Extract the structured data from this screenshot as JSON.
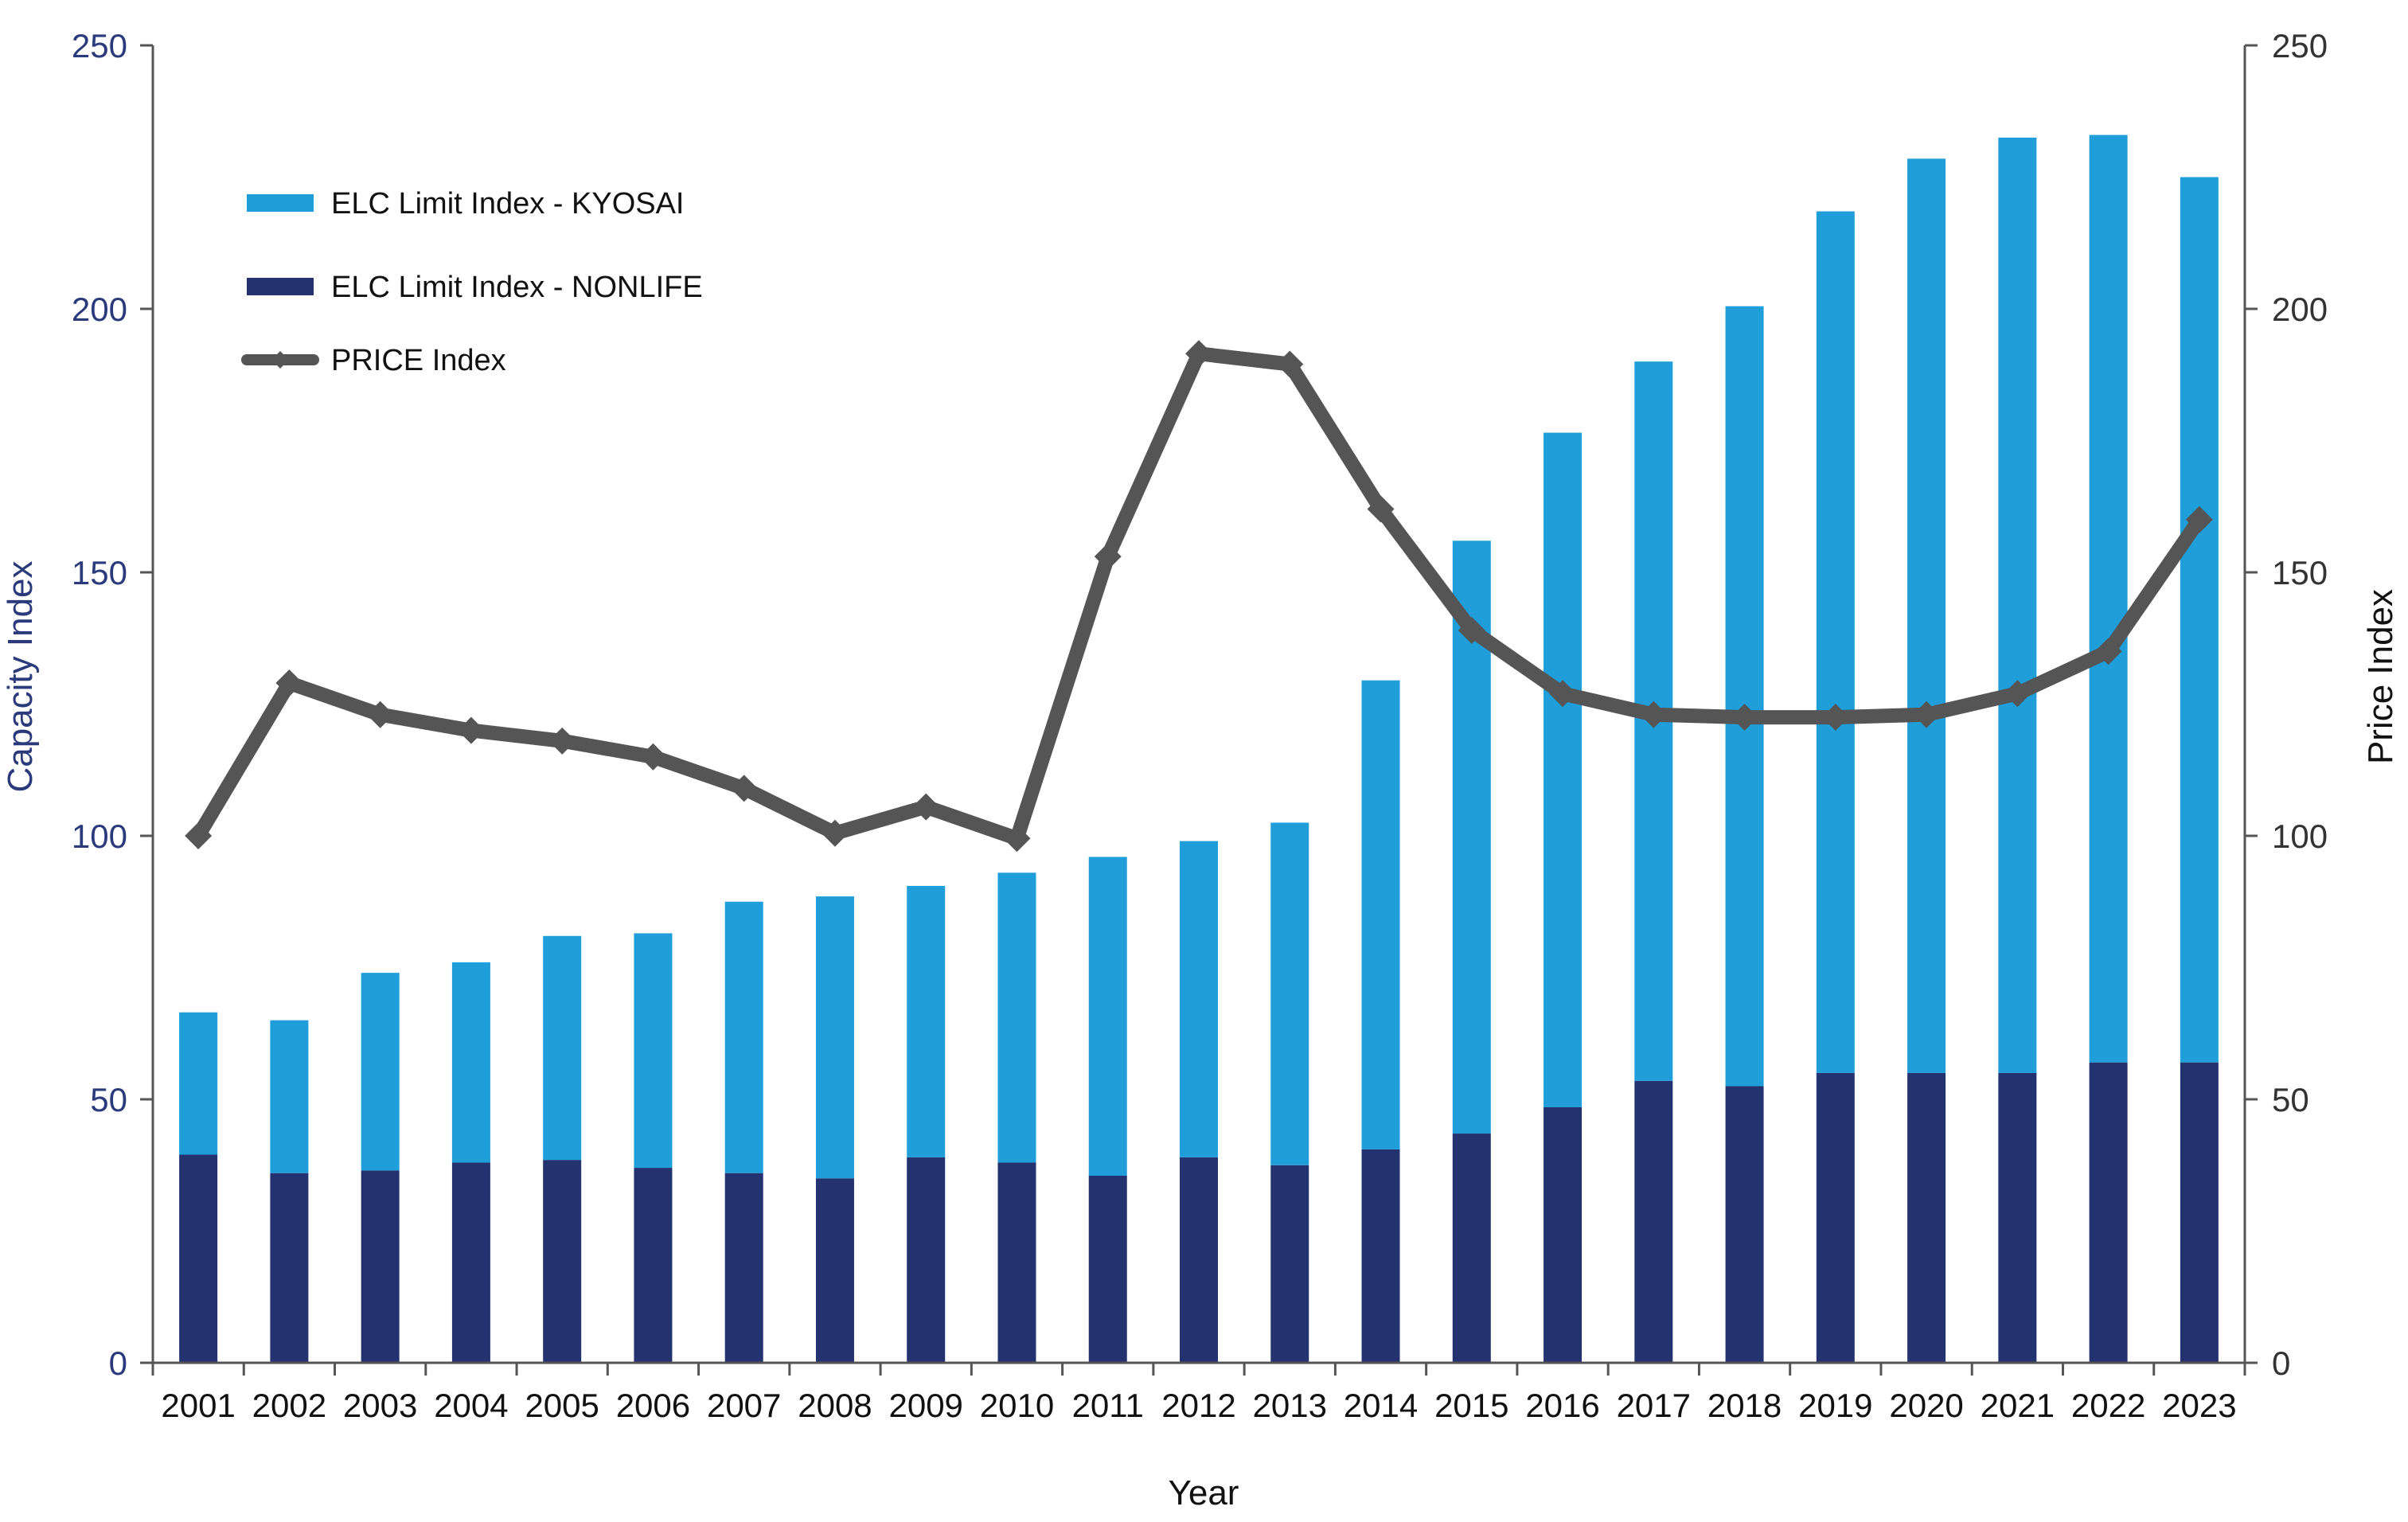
{
  "chart_data": {
    "type": "bar",
    "stacked": true,
    "categories": [
      "2001",
      "2002",
      "2003",
      "2004",
      "2005",
      "2006",
      "2007",
      "2008",
      "2009",
      "2010",
      "2011",
      "2012",
      "2013",
      "2014",
      "2015",
      "2016",
      "2017",
      "2018",
      "2019",
      "2020",
      "2021",
      "2022",
      "2023"
    ],
    "series": [
      {
        "name": "ELC Limit Index - NONLIFE",
        "type": "bar",
        "axis": "left",
        "color": "#243370",
        "values": [
          39.5,
          36,
          36.5,
          38,
          38.5,
          37,
          36,
          35,
          39,
          38,
          35.5,
          39,
          37.5,
          40.5,
          43.5,
          48.5,
          53.5,
          52.5,
          55,
          55,
          55,
          57,
          57
        ]
      },
      {
        "name": "ELC Limit Index - KYOSAI",
        "type": "bar",
        "axis": "left",
        "color": "#1f9ed9",
        "values": [
          27,
          29,
          37.5,
          38,
          42.5,
          44.5,
          51.5,
          53.5,
          51.5,
          55,
          60.5,
          60,
          65,
          89,
          112.5,
          128,
          136.5,
          148,
          163.5,
          173.5,
          177.5,
          176,
          168
        ]
      },
      {
        "name": "PRICE Index",
        "type": "line",
        "axis": "right",
        "color": "#555555",
        "values": [
          100,
          129,
          123,
          120,
          118,
          115,
          109,
          100.5,
          105.5,
          99.5,
          153,
          191.5,
          189.5,
          162,
          139,
          127,
          123,
          122.5,
          122.5,
          123,
          127,
          135,
          160
        ]
      }
    ],
    "title": "",
    "xlabel": "Year",
    "ylabel": "Capacity Index",
    "y2label": "Price Index",
    "ylim": [
      0,
      250
    ],
    "y2lim": [
      0,
      250
    ],
    "yticks": [
      "0",
      "50",
      "100",
      "150",
      "200",
      "250"
    ],
    "grid": false,
    "legend_position": "top-left",
    "legend_order": [
      "ELC Limit Index - KYOSAI",
      "ELC Limit Index - NONLIFE",
      "PRICE Index"
    ]
  }
}
